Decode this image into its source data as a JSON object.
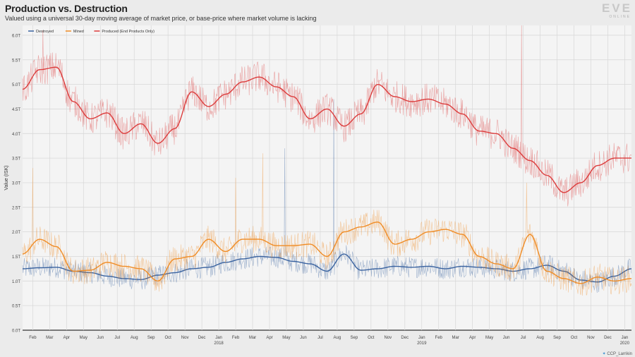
{
  "header": {
    "title": "Production vs. Destruction",
    "subtitle": "Valued using a universal 30-day moving average of market price, or base-price where market volume is lacking"
  },
  "branding": {
    "logo_text": "EVE",
    "logo_subtext": "ONLINE",
    "credit_text": "CCP_Larrikin"
  },
  "colors": {
    "background": "#ebebeb",
    "plot_background": "#f4f4f4",
    "grid": "#d8d8d8",
    "destroyed": "#3a63a0",
    "mined": "#f08c25",
    "produced": "#dc3c3c"
  },
  "chart_data": {
    "type": "line",
    "title": "Production vs. Destruction",
    "ylabel": "Value (ISK)",
    "xlabel": "",
    "ylim": [
      0,
      6.2
    ],
    "xlim": [
      0,
      36
    ],
    "grid": true,
    "legend_position": "top-left",
    "y_ticks": [
      {
        "value": 0,
        "label": "0.0T"
      },
      {
        "value": 0.5,
        "label": "0.5T"
      },
      {
        "value": 1.0,
        "label": "1.0T"
      },
      {
        "value": 1.5,
        "label": "1.5T"
      },
      {
        "value": 2.0,
        "label": "2.0T"
      },
      {
        "value": 2.5,
        "label": "2.5T"
      },
      {
        "value": 3.0,
        "label": "3.0T"
      },
      {
        "value": 3.5,
        "label": "3.5T"
      },
      {
        "value": 4.0,
        "label": "4.0T"
      },
      {
        "value": 4.5,
        "label": "4.5T"
      },
      {
        "value": 5.0,
        "label": "5.0T"
      },
      {
        "value": 5.5,
        "label": "5.5T"
      },
      {
        "value": 6.0,
        "label": "6.0T"
      }
    ],
    "x_ticks": [
      {
        "t": 0.6,
        "label": "Feb"
      },
      {
        "t": 1.6,
        "label": "Mar"
      },
      {
        "t": 2.6,
        "label": "Apr"
      },
      {
        "t": 3.6,
        "label": "May"
      },
      {
        "t": 4.6,
        "label": "Jun"
      },
      {
        "t": 5.6,
        "label": "Jul"
      },
      {
        "t": 6.6,
        "label": "Aug"
      },
      {
        "t": 7.6,
        "label": "Sep"
      },
      {
        "t": 8.6,
        "label": "Oct"
      },
      {
        "t": 9.6,
        "label": "Nov"
      },
      {
        "t": 10.6,
        "label": "Dec"
      },
      {
        "t": 11.6,
        "label": "Jan",
        "sub": "2018"
      },
      {
        "t": 12.6,
        "label": "Feb"
      },
      {
        "t": 13.6,
        "label": "Mar"
      },
      {
        "t": 14.6,
        "label": "Apr"
      },
      {
        "t": 15.6,
        "label": "May"
      },
      {
        "t": 16.6,
        "label": "Jun"
      },
      {
        "t": 17.6,
        "label": "Jul"
      },
      {
        "t": 18.6,
        "label": "Aug"
      },
      {
        "t": 19.6,
        "label": "Sep"
      },
      {
        "t": 20.6,
        "label": "Oct"
      },
      {
        "t": 21.6,
        "label": "Nov"
      },
      {
        "t": 22.6,
        "label": "Dec"
      },
      {
        "t": 23.6,
        "label": "Jan",
        "sub": "2019"
      },
      {
        "t": 24.6,
        "label": "Feb"
      },
      {
        "t": 25.6,
        "label": "Mar"
      },
      {
        "t": 26.6,
        "label": "Apr"
      },
      {
        "t": 27.6,
        "label": "May"
      },
      {
        "t": 28.6,
        "label": "Jun"
      },
      {
        "t": 29.6,
        "label": "Jul"
      },
      {
        "t": 30.6,
        "label": "Aug"
      },
      {
        "t": 31.6,
        "label": "Sep"
      },
      {
        "t": 32.6,
        "label": "Oct"
      },
      {
        "t": 33.6,
        "label": "Nov"
      },
      {
        "t": 34.6,
        "label": "Dec"
      },
      {
        "t": 35.6,
        "label": "Jan",
        "sub": "2020"
      }
    ],
    "series": [
      {
        "name": "Destroyed",
        "color": "#3a63a0",
        "t": [
          0,
          1,
          2,
          3,
          4,
          5,
          6,
          7,
          8,
          9,
          10,
          11,
          12,
          13,
          14,
          15,
          16,
          17,
          18,
          19,
          20,
          21,
          22,
          23,
          24,
          25,
          26,
          27,
          28,
          29,
          30,
          31,
          32,
          33,
          34,
          35,
          36
        ],
        "values": [
          1.25,
          1.27,
          1.28,
          1.2,
          1.17,
          1.1,
          1.05,
          1.03,
          1.12,
          1.17,
          1.25,
          1.28,
          1.38,
          1.45,
          1.5,
          1.48,
          1.4,
          1.35,
          1.2,
          1.55,
          1.22,
          1.25,
          1.3,
          1.28,
          1.3,
          1.25,
          1.3,
          1.28,
          1.25,
          1.2,
          1.25,
          1.32,
          1.2,
          1.02,
          0.98,
          1.1,
          1.25
        ]
      },
      {
        "name": "Mined",
        "color": "#f08c25",
        "t": [
          0,
          1,
          2,
          3,
          4,
          5,
          6,
          7,
          8,
          9,
          10,
          11,
          12,
          13,
          14,
          15,
          16,
          17,
          18,
          19,
          20,
          21,
          22,
          23,
          24,
          25,
          26,
          27,
          28,
          29,
          30,
          31,
          32,
          33,
          34,
          35,
          36
        ],
        "values": [
          1.55,
          1.85,
          1.7,
          1.2,
          1.22,
          1.38,
          1.3,
          1.25,
          1.0,
          1.45,
          1.5,
          1.85,
          1.6,
          1.85,
          1.85,
          1.72,
          1.72,
          1.75,
          1.5,
          2.0,
          2.1,
          2.2,
          1.75,
          1.85,
          2.0,
          2.05,
          1.95,
          1.5,
          1.35,
          1.25,
          1.95,
          1.2,
          1.05,
          0.95,
          1.08,
          1.0,
          1.05
        ]
      },
      {
        "name": "Produced (End Products Only)",
        "color": "#dc3c3c",
        "t": [
          0,
          1,
          2,
          3,
          4,
          5,
          6,
          7,
          8,
          9,
          10,
          11,
          12,
          13,
          14,
          15,
          16,
          17,
          18,
          19,
          20,
          21,
          22,
          23,
          24,
          25,
          26,
          27,
          28,
          29,
          30,
          31,
          32,
          33,
          34,
          35,
          36
        ],
        "values": [
          4.9,
          5.3,
          5.35,
          4.65,
          4.3,
          4.42,
          4.0,
          4.2,
          3.8,
          4.1,
          4.85,
          4.55,
          4.8,
          5.05,
          5.15,
          4.95,
          4.75,
          4.3,
          4.5,
          4.15,
          4.4,
          5.0,
          4.75,
          4.65,
          4.7,
          4.6,
          4.4,
          4.05,
          4.0,
          3.7,
          3.45,
          3.15,
          2.8,
          3.0,
          3.35,
          3.5,
          3.5
        ]
      }
    ]
  }
}
